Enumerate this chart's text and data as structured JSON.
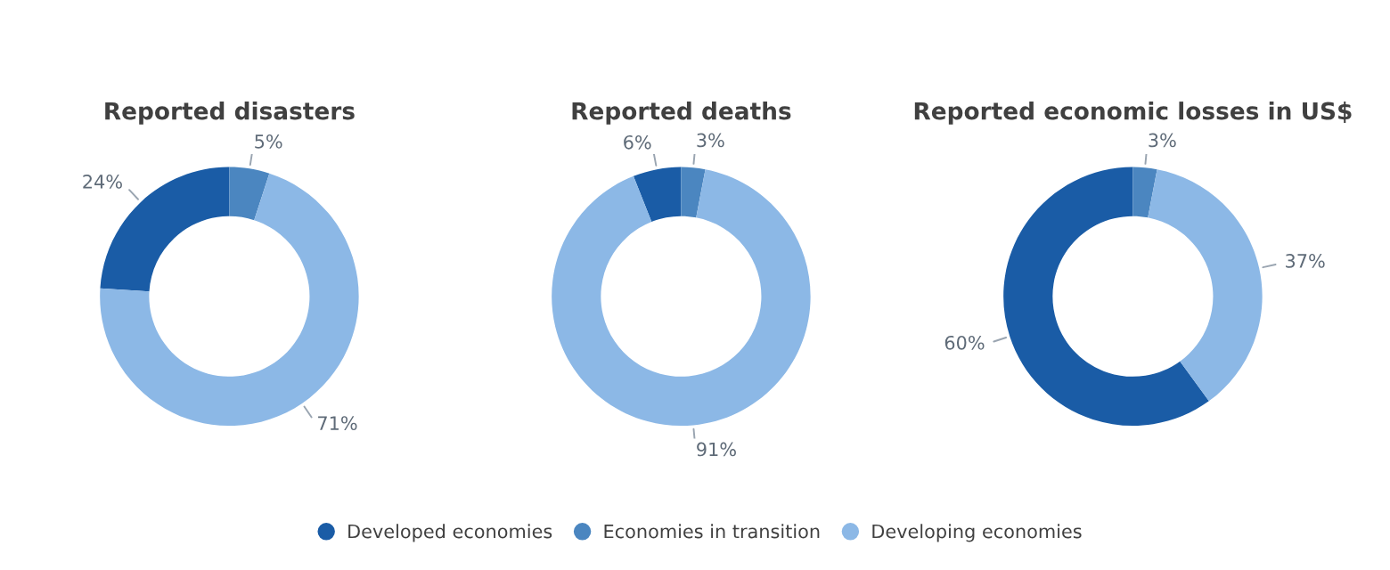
{
  "chart_data": [
    {
      "type": "donut",
      "title": "Reported disasters",
      "categories": [
        "Developed economies",
        "Economies in transition",
        "Developing economies"
      ],
      "values": [
        24,
        5,
        71
      ],
      "colors": [
        "#1a5ca6",
        "#4b86c0",
        "#8cb8e6"
      ],
      "value_labels": [
        "24%",
        "5%",
        "71%"
      ],
      "legend": "bottom"
    },
    {
      "type": "donut",
      "title": "Reported deaths",
      "categories": [
        null,
        null,
        null
      ],
      "values": [
        6,
        3,
        91
      ],
      "colors": [
        "#1a5ca6",
        "#4b86c0",
        "#8cb8e6"
      ],
      "value_labels": [
        "6%",
        "3%",
        "91%"
      ]
    },
    {
      "type": "donut",
      "title": "Reported economic losses in US$",
      "categories": [
        null,
        null,
        null
      ],
      "values": [
        60,
        3,
        37
      ],
      "colors": [
        "#1a5ca6",
        "#4b86c0",
        "#8cb8e6"
      ],
      "value_labels": [
        "60%",
        "3%",
        "37%"
      ]
    }
  ]
}
